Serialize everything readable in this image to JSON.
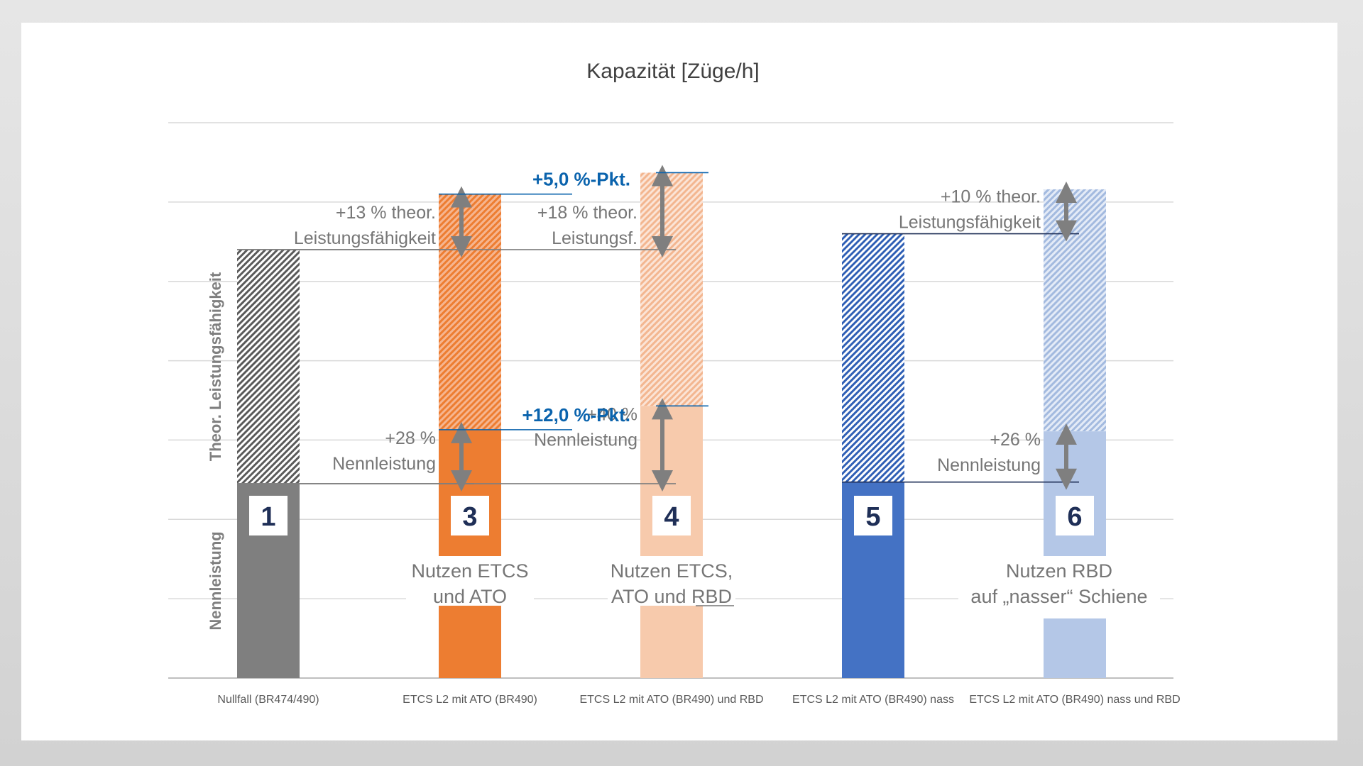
{
  "chart_data": {
    "type": "bar",
    "title": "Kapazität [Züge/h]",
    "categories": [
      "Nullfall (BR474/490)",
      "ETCS L2 mit ATO (BR490)",
      "ETCS L2 mit ATO (BR490) und RBD",
      "ETCS L2 mit ATO (BR490) nass",
      "ETCS L2 mit ATO (BR490) nass und RBD"
    ],
    "ylim": [
      0,
      7
    ],
    "grid": true,
    "series": [
      {
        "name": "Nennleistung",
        "values": [
          2.45,
          3.13,
          3.43,
          2.47,
          3.11
        ]
      },
      {
        "name": "Theor. Leistungsfähigkeit",
        "values": [
          5.4,
          6.1,
          6.37,
          5.6,
          6.16
        ]
      }
    ],
    "colors": {
      "solid": [
        "#7f7f7f",
        "#ed7d31",
        "#f7caac",
        "#4472c4",
        "#b4c7e7"
      ],
      "hatch_bg": [
        "#ffffff",
        "#f6b58f",
        "#fbe4d6",
        "#ffffff",
        "#e4ebf7"
      ],
      "hatch_line": [
        "#5a5a5a",
        "#ed7d31",
        "#f3b690",
        "#2f5fb5",
        "#a3badf"
      ],
      "box_text": "#1f2f57",
      "blue_annotation": "#0a63ad",
      "grid": "#d9d9d9"
    },
    "band_labels": [
      "Nennleistung",
      "Theor. Leistungsfähigkeit"
    ],
    "bar_numbers": [
      "1",
      "3",
      "4",
      "5",
      "6"
    ],
    "annotations": {
      "nominal": [
        {
          "bar": 1,
          "from": 2.45,
          "to": 3.13,
          "lines": [
            "+28 %",
            "Nennleistung"
          ]
        },
        {
          "bar": 2,
          "from": 2.45,
          "to": 3.43,
          "lines": [
            "+40 %",
            "Nennleistung"
          ]
        },
        {
          "bar": 4,
          "from": 2.47,
          "to": 3.11,
          "lines": [
            "+26 %",
            "Nennleistung"
          ]
        }
      ],
      "theoretical": [
        {
          "bar": 1,
          "from": 5.4,
          "to": 6.1,
          "lines": [
            "+13 % theor.",
            "Leistungsfähigkeit"
          ]
        },
        {
          "bar": 2,
          "from": 5.4,
          "to": 6.37,
          "lines": [
            "+18 % theor.",
            "Leistungsf."
          ]
        },
        {
          "bar": 4,
          "from": 5.6,
          "to": 6.16,
          "lines": [
            "+10 % theor.",
            "Leistungsfähigkeit"
          ]
        }
      ],
      "percentage_points": [
        {
          "between": [
            1,
            2
          ],
          "lower": 3.13,
          "upper": 3.43,
          "text": "+12,0 %-Pkt."
        },
        {
          "between": [
            1,
            2
          ],
          "lower": 6.1,
          "upper": 6.37,
          "text": "+5,0 %-Pkt."
        }
      ],
      "benefits": [
        {
          "bar": 1,
          "lines": [
            "Nutzen ETCS",
            "und ATO"
          ]
        },
        {
          "bar": 2,
          "lines": [
            "Nutzen ETCS,",
            "ATO und RBD"
          ],
          "underline": "RBD"
        },
        {
          "bar": 4,
          "lines": [
            "Nutzen RBD",
            "auf „nasser“ Schiene"
          ]
        }
      ]
    }
  }
}
